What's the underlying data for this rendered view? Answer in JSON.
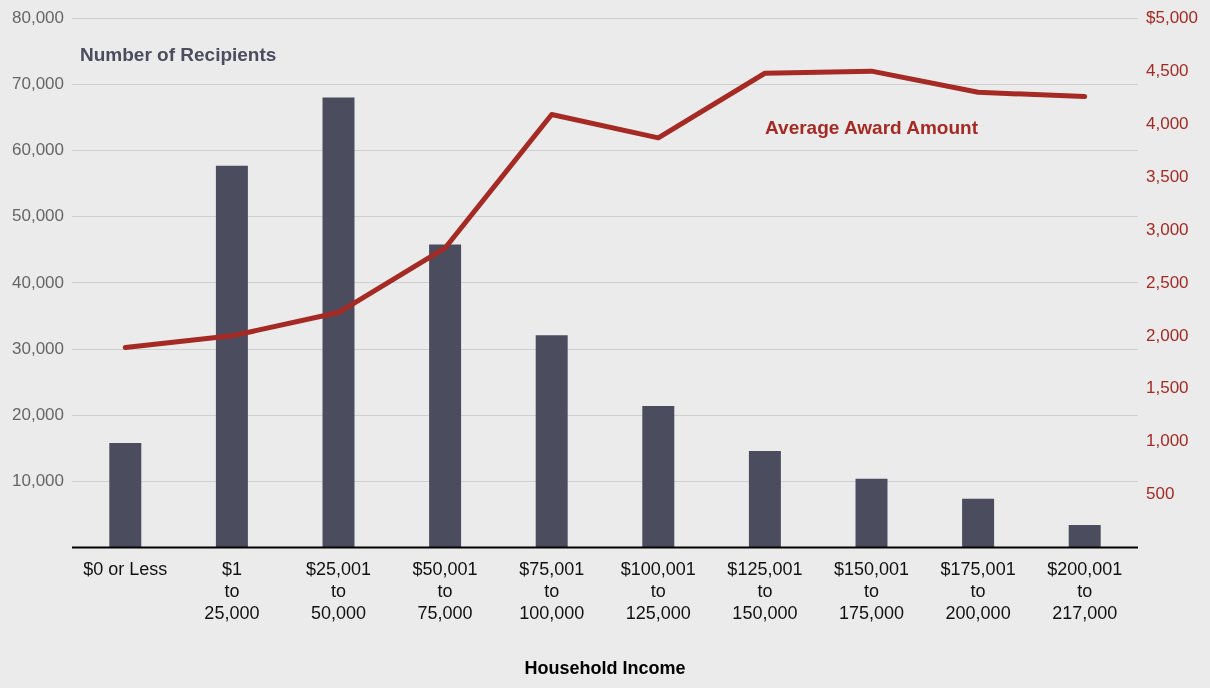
{
  "chart_data": {
    "type": "bar",
    "xlabel": "Household Income",
    "categories": [
      "$0 or Less",
      "$1\nto\n25,000",
      "$25,001\nto\n50,000",
      "$50,001\nto\n75,000",
      "$75,001\nto\n100,000",
      "$100,001\nto\n125,000",
      "$125,001\nto\n150,000",
      "$150,001\nto\n175,000",
      "$175,001\nto\n200,000",
      "$200,001\nto\n217,000"
    ],
    "series": [
      {
        "name": "Number of Recipients",
        "color": "#4b4c5e",
        "values": [
          15800,
          57700,
          68000,
          45800,
          32100,
          21400,
          14600,
          10400,
          7400,
          3400
        ]
      },
      {
        "name": "Average Award Amount",
        "type": "line",
        "axis": "y2",
        "color": "#a52a24",
        "values": [
          1890,
          2000,
          2220,
          2830,
          4090,
          3870,
          4480,
          4500,
          4300,
          4260
        ]
      }
    ],
    "ylim": [
      0,
      80000
    ],
    "yticks": [
      {
        "value": 10000,
        "label": "10,000"
      },
      {
        "value": 20000,
        "label": "20,000"
      },
      {
        "value": 30000,
        "label": "30,000"
      },
      {
        "value": 40000,
        "label": "40,000"
      },
      {
        "value": 50000,
        "label": "50,000"
      },
      {
        "value": 60000,
        "label": "60,000"
      },
      {
        "value": 70000,
        "label": "70,000"
      },
      {
        "value": 80000,
        "label": "80,000"
      }
    ],
    "y2lim": [
      0,
      5000
    ],
    "y2ticks": [
      500,
      {
        "value": 1000,
        "label": "1,000"
      },
      {
        "value": 1500,
        "label": "1,500"
      },
      {
        "value": 2000,
        "label": "2,000"
      },
      {
        "value": 2500,
        "label": "2,500"
      },
      {
        "value": 3000,
        "label": "3,000"
      },
      {
        "value": 3500,
        "label": "3,500"
      },
      {
        "value": 4000,
        "label": "4,000"
      },
      {
        "value": 4500,
        "label": "4,500"
      },
      {
        "value": 5000,
        "label": "$5,000"
      }
    ],
    "grid": "y",
    "legend": false,
    "marker": "none",
    "line_style": "solid"
  }
}
